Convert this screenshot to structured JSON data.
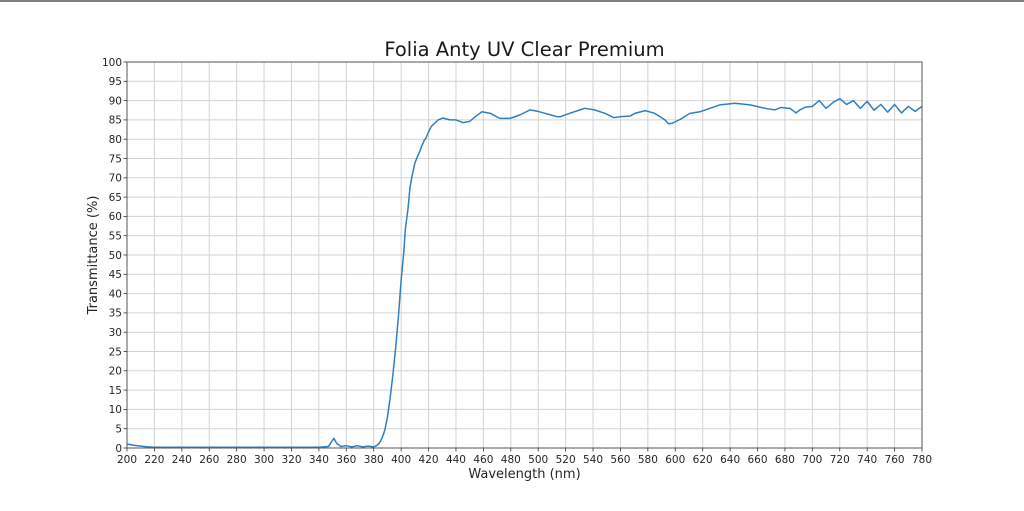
{
  "chart_data": {
    "type": "line",
    "title": "Folia Anty UV Clear Premium",
    "xlabel": "Wavelength (nm)",
    "ylabel": "Transmittance (%)",
    "xlim": [
      200,
      780
    ],
    "ylim": [
      0,
      100
    ],
    "grid": true,
    "legend": null,
    "x_ticks": [
      200,
      220,
      240,
      260,
      280,
      300,
      320,
      340,
      360,
      380,
      400,
      420,
      440,
      460,
      480,
      500,
      520,
      540,
      560,
      580,
      600,
      620,
      640,
      660,
      680,
      700,
      720,
      740,
      760,
      780
    ],
    "y_ticks": [
      0,
      5,
      10,
      15,
      20,
      25,
      30,
      35,
      40,
      45,
      50,
      55,
      60,
      65,
      70,
      75,
      80,
      85,
      90,
      95,
      100
    ],
    "line_color": "#2f7fc1",
    "series": [
      {
        "name": "Transmittance",
        "x": [
          200,
          205,
          210,
          215,
          220,
          240,
          260,
          280,
          300,
          320,
          340,
          347,
          349,
          351,
          353,
          356,
          360,
          364,
          368,
          372,
          376,
          380,
          382,
          384,
          386,
          388,
          390,
          392,
          394,
          396,
          398,
          400,
          402,
          403,
          405,
          406.5,
          408,
          410,
          412,
          413.5,
          415,
          417,
          418,
          420,
          422,
          424.7,
          427,
          430.5,
          435.6,
          440,
          443,
          445,
          450,
          454,
          459,
          465,
          472,
          479.6,
          486.7,
          494,
          500,
          505,
          510,
          514,
          516,
          523,
          530.5,
          534,
          541,
          548.7,
          555,
          559.7,
          567,
          570.6,
          578,
          585,
          592.5,
          595,
          597.6,
          603.4,
          610.7,
          618,
          625.3,
          632.6,
          643.5,
          654.5,
          665.4,
          672.7,
          677,
          683.7,
          688,
          691,
          695,
          700,
          705,
          710,
          715,
          720,
          725,
          730,
          735,
          740,
          745,
          750,
          755,
          760,
          765,
          770,
          775,
          780
        ],
        "y": [
          1.0,
          0.7,
          0.5,
          0.3,
          0.2,
          0.2,
          0.2,
          0.2,
          0.2,
          0.2,
          0.2,
          0.4,
          1.5,
          2.5,
          1.2,
          0.4,
          0.6,
          0.3,
          0.6,
          0.3,
          0.5,
          0.3,
          0.6,
          1.2,
          2.5,
          4.5,
          8,
          13,
          19,
          26,
          34,
          43.5,
          51,
          56.5,
          62,
          67.6,
          70.5,
          73.8,
          75.6,
          76.7,
          78.2,
          79.8,
          80.2,
          81.9,
          83.3,
          84.2,
          85.0,
          85.5,
          85.0,
          85.0,
          84.6,
          84.3,
          84.6,
          85.8,
          87.1,
          86.7,
          85.4,
          85.4,
          86.3,
          87.6,
          87.2,
          86.7,
          86.2,
          85.8,
          85.8,
          86.7,
          87.6,
          88.0,
          87.6,
          86.7,
          85.6,
          85.8,
          86.0,
          86.7,
          87.4,
          86.7,
          85.0,
          84.0,
          84.1,
          85.1,
          86.7,
          87.1,
          88.0,
          88.9,
          89.3,
          88.9,
          88.0,
          87.6,
          88.2,
          88.0,
          86.8,
          87.6,
          88.3,
          88.5,
          90.0,
          88.0,
          89.5,
          90.5,
          89.0,
          90.0,
          88.0,
          89.8,
          87.5,
          89.0,
          87.0,
          89.0,
          86.8,
          88.5,
          87.2,
          88.5
        ]
      }
    ]
  }
}
